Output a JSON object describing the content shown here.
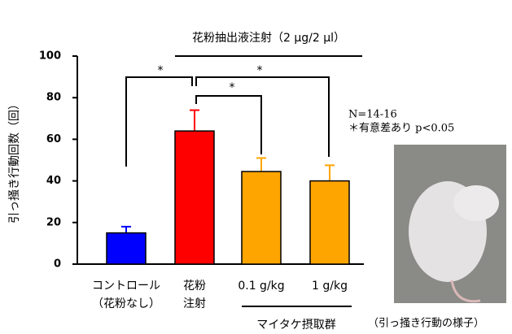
{
  "chart_data": {
    "type": "bar",
    "title": "花粉抽出液注射（2 μg/2 μl）",
    "y_label": "引っ掻き行動回数（回）",
    "group_label": "マイタケ摂取群",
    "categories": [
      [
        "コントロール",
        "（花粉なし）"
      ],
      [
        "花粉",
        "注射"
      ],
      [
        "0.1 g/kg"
      ],
      [
        "1 g/kg"
      ]
    ],
    "values": [
      15,
      64,
      44.5,
      40
    ],
    "errors": [
      3,
      10,
      6.5,
      7.5
    ],
    "colors": [
      "#0000ff",
      "#ff0000",
      "#ffa500",
      "#ffa500"
    ],
    "ylim": [
      0,
      100
    ],
    "yticks": [
      0,
      20,
      40,
      60,
      80,
      100
    ],
    "significance": [
      "*",
      "*",
      "*"
    ],
    "notes": [
      "N=14-16",
      "＊有意差あり p<0.05"
    ],
    "photo_caption": "（引っ掻き行動の様子）"
  }
}
